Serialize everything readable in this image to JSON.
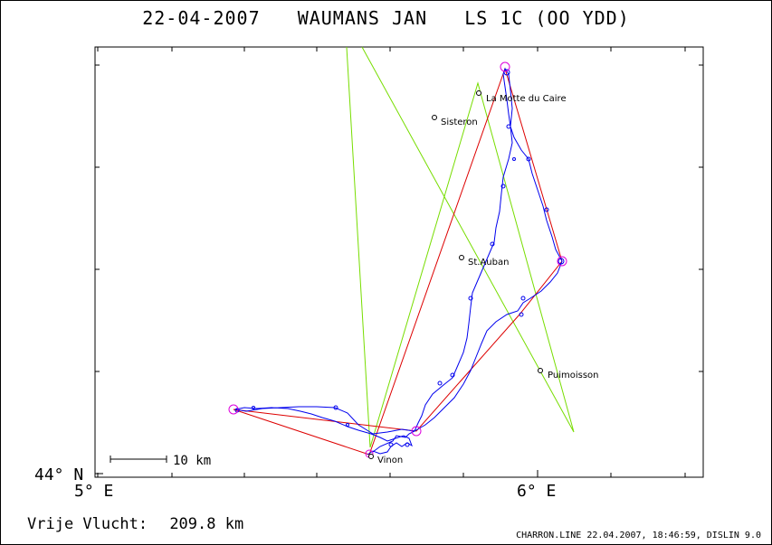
{
  "title": {
    "date": "22-04-2007",
    "pilot": "WAUMANS JAN",
    "glider": "LS 1C (OO YDD)"
  },
  "axes": {
    "lat_label": "44° N",
    "lon_labels": [
      "5° E",
      "6° E"
    ]
  },
  "scale_bar": {
    "label": "10 km"
  },
  "towns": [
    {
      "name": "La Motte du Caire"
    },
    {
      "name": "Sisteron"
    },
    {
      "name": "St.Auban"
    },
    {
      "name": "Puimoisson"
    },
    {
      "name": "Vinon"
    }
  ],
  "footer": {
    "flight_type": "Vrije Vlucht:",
    "distance": "209.8 km",
    "credit": "CHARRON.LINE 22.04.2007, 18:46:59, DISLIN 9.0"
  },
  "colors": {
    "track": "#0000ee",
    "task": "#dd0000",
    "optimized": "#77dd00",
    "turnpoint": "#dd00dd",
    "town": "#000000"
  }
}
